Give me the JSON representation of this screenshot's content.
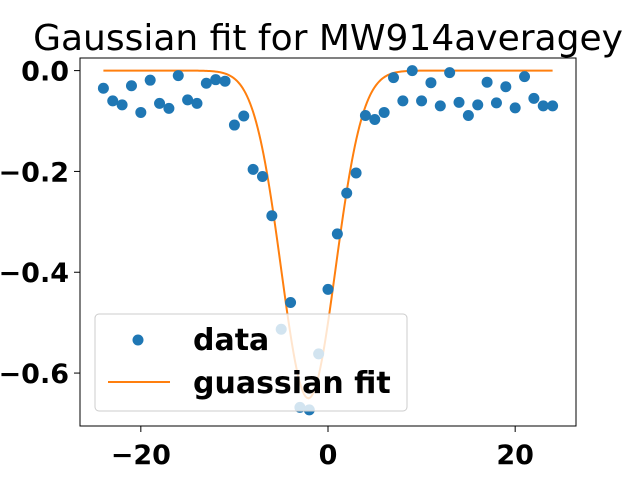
{
  "chart_data": {
    "type": "scatter",
    "title": "Gaussian fit for MW914averagey",
    "xlabel": "",
    "ylabel": "",
    "xlim": [
      -26.5,
      26.5
    ],
    "ylim": [
      -0.705,
      0.025
    ],
    "x_ticks": [
      -20,
      0,
      20
    ],
    "x_tick_labels": [
      "−20",
      "0",
      "20"
    ],
    "y_ticks": [
      0.0,
      -0.2,
      -0.4,
      -0.6
    ],
    "y_tick_labels": [
      "0.0",
      "−0.2",
      "−0.4",
      "−0.6"
    ],
    "grid": false,
    "legend_position": "lower-left",
    "series": [
      {
        "name": "data",
        "kind": "scatter",
        "color": "#1f77b4",
        "x": [
          -24,
          -23,
          -22,
          -21,
          -20,
          -19,
          -18,
          -17,
          -16,
          -15,
          -14,
          -13,
          -12,
          -11,
          -10,
          -9,
          -8,
          -7,
          -6,
          -5,
          -4,
          -3,
          -2,
          -1,
          0,
          1,
          2,
          3,
          4,
          5,
          6,
          7,
          8,
          9,
          10,
          11,
          12,
          13,
          14,
          15,
          16,
          17,
          18,
          19,
          20,
          21,
          22,
          23,
          24
        ],
        "y": [
          -0.035,
          -0.06,
          -0.068,
          -0.03,
          -0.083,
          -0.019,
          -0.065,
          -0.075,
          -0.01,
          -0.058,
          -0.065,
          -0.025,
          -0.018,
          -0.021,
          -0.108,
          -0.09,
          -0.196,
          -0.21,
          -0.288,
          -0.513,
          -0.46,
          -0.668,
          -0.673,
          -0.562,
          -0.434,
          -0.324,
          -0.243,
          -0.203,
          -0.089,
          -0.097,
          -0.083,
          -0.014,
          -0.06,
          0.0,
          -0.06,
          -0.024,
          -0.07,
          -0.004,
          -0.063,
          -0.089,
          -0.068,
          -0.023,
          -0.064,
          -0.032,
          -0.074,
          -0.012,
          -0.055,
          -0.07,
          -0.07
        ]
      },
      {
        "name": "guassian fit",
        "kind": "line",
        "color": "#ff7f0e",
        "amplitude": -0.65,
        "mean": -2.1,
        "sigma": 2.9,
        "offset": 0.0,
        "x_range": [
          -24,
          24
        ]
      }
    ]
  }
}
